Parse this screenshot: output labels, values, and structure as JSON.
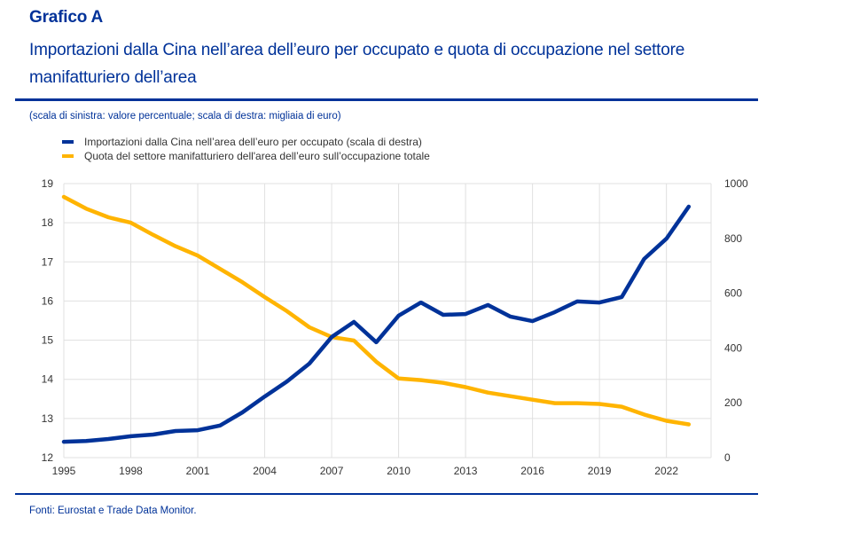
{
  "header": {
    "label": "Grafico A",
    "title": "Importazioni dalla Cina nell’area dell’euro per occupato e quota di occupazione nel settore manifatturiero dell’area",
    "note": "(scala di sinistra: valore percentuale; scala di destra: migliaia di euro)"
  },
  "footer": {
    "source": "Fonti: Eurostat e Trade Data Monitor."
  },
  "colors": {
    "brand": "#003299",
    "imports": "#003299",
    "share": "#FFB400",
    "grid": "#E0E0E0"
  },
  "chart_data": {
    "type": "line",
    "title": "Importazioni dalla Cina nell’area dell’euro per occupato e quota di occupazione nel settore manifatturiero dell’area",
    "xlabel": "",
    "ylabel_left": "valore percentuale",
    "ylabel_right": "migliaia di euro",
    "x": [
      1995,
      1996,
      1997,
      1998,
      1999,
      2000,
      2001,
      2002,
      2003,
      2004,
      2005,
      2006,
      2007,
      2008,
      2009,
      2010,
      2011,
      2012,
      2013,
      2014,
      2015,
      2016,
      2017,
      2018,
      2019,
      2020,
      2021,
      2022,
      2023
    ],
    "x_ticks": [
      "1995",
      "1998",
      "2001",
      "2004",
      "2007",
      "2010",
      "2013",
      "2016",
      "2019",
      "2022"
    ],
    "x_range": [
      1995,
      2024
    ],
    "y_left": {
      "range": [
        12,
        19
      ],
      "ticks": [
        "12",
        "13",
        "14",
        "15",
        "16",
        "17",
        "18",
        "19"
      ]
    },
    "y_right": {
      "range": [
        0,
        1000
      ],
      "ticks": [
        "0",
        "200",
        "400",
        "600",
        "800",
        "1000"
      ]
    },
    "grid": true,
    "legend_position": "top-left",
    "series": [
      {
        "name": "Importazioni dalla Cina nell’area dell’euro per occupato (scala di destra)",
        "axis": "right",
        "color": "#003299",
        "values": [
          58,
          61,
          68,
          78,
          84,
          97,
          100,
          117,
          165,
          223,
          278,
          343,
          440,
          495,
          421,
          518,
          566,
          521,
          524,
          557,
          515,
          498,
          531,
          570,
          566,
          586,
          725,
          799,
          916
        ]
      },
      {
        "name": "Quota del settore manifatturiero dell'area dell’euro sull’occupazione totale",
        "axis": "left",
        "color": "#FFB400",
        "values": [
          18.66,
          18.36,
          18.14,
          18.0,
          17.69,
          17.4,
          17.16,
          16.82,
          16.48,
          16.1,
          15.74,
          15.33,
          15.08,
          14.99,
          14.45,
          14.02,
          13.98,
          13.91,
          13.8,
          13.66,
          13.57,
          13.48,
          13.39,
          13.39,
          13.37,
          13.3,
          13.1,
          12.94,
          12.85
        ]
      }
    ]
  }
}
